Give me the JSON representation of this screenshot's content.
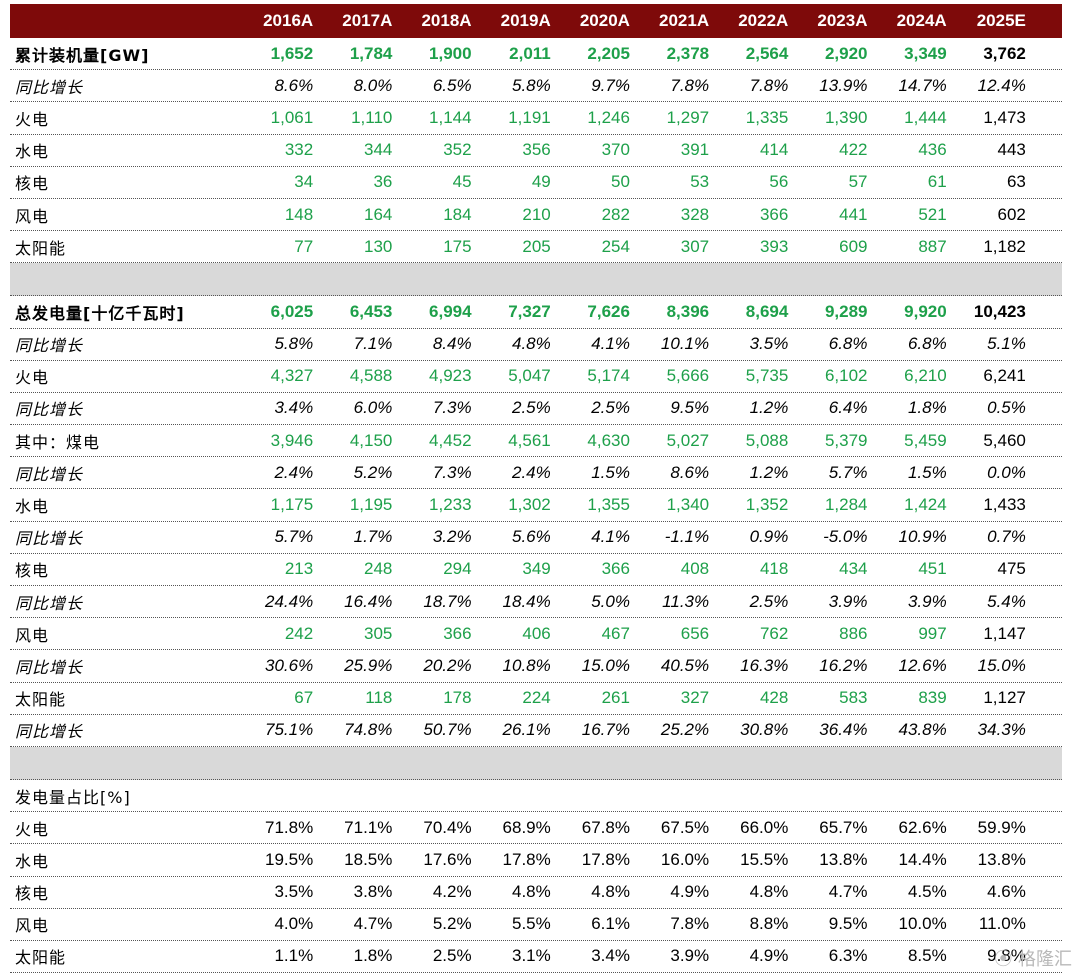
{
  "header": [
    "2016A",
    "2017A",
    "2018A",
    "2019A",
    "2020A",
    "2021A",
    "2022A",
    "2023A",
    "2024A",
    "2025E"
  ],
  "rows": [
    {
      "label": "累计装机量[GW]",
      "values": [
        "1,652",
        "1,784",
        "1,900",
        "2,011",
        "2,205",
        "2,378",
        "2,564",
        "2,920",
        "3,349",
        "3,762"
      ],
      "style": "green bold"
    },
    {
      "label": "同比增长",
      "values": [
        "8.6%",
        "8.0%",
        "6.5%",
        "5.8%",
        "9.7%",
        "7.8%",
        "7.8%",
        "13.9%",
        "14.7%",
        "12.4%"
      ],
      "style": "ital"
    },
    {
      "label": "火电",
      "values": [
        "1,061",
        "1,110",
        "1,144",
        "1,191",
        "1,246",
        "1,297",
        "1,335",
        "1,390",
        "1,444",
        "1,473"
      ],
      "style": "green"
    },
    {
      "label": "水电",
      "values": [
        "332",
        "344",
        "352",
        "356",
        "370",
        "391",
        "414",
        "422",
        "436",
        "443"
      ],
      "style": "green"
    },
    {
      "label": "核电",
      "values": [
        "34",
        "36",
        "45",
        "49",
        "50",
        "53",
        "56",
        "57",
        "61",
        "63"
      ],
      "style": "green"
    },
    {
      "label": "风电",
      "values": [
        "148",
        "164",
        "184",
        "210",
        "282",
        "328",
        "366",
        "441",
        "521",
        "602"
      ],
      "style": "green"
    },
    {
      "label": "太阳能",
      "values": [
        "77",
        "130",
        "175",
        "205",
        "254",
        "307",
        "393",
        "609",
        "887",
        "1,182"
      ],
      "style": "green"
    },
    {
      "label": "",
      "values": [],
      "style": "gap"
    },
    {
      "label": "总发电量[十亿千瓦时]",
      "values": [
        "6,025",
        "6,453",
        "6,994",
        "7,327",
        "7,626",
        "8,396",
        "8,694",
        "9,289",
        "9,920",
        "10,423"
      ],
      "style": "green bold"
    },
    {
      "label": "同比增长",
      "values": [
        "5.8%",
        "7.1%",
        "8.4%",
        "4.8%",
        "4.1%",
        "10.1%",
        "3.5%",
        "6.8%",
        "6.8%",
        "5.1%"
      ],
      "style": "ital"
    },
    {
      "label": "火电",
      "values": [
        "4,327",
        "4,588",
        "4,923",
        "5,047",
        "5,174",
        "5,666",
        "5,735",
        "6,102",
        "6,210",
        "6,241"
      ],
      "style": "green"
    },
    {
      "label": "同比增长",
      "values": [
        "3.4%",
        "6.0%",
        "7.3%",
        "2.5%",
        "2.5%",
        "9.5%",
        "1.2%",
        "6.4%",
        "1.8%",
        "0.5%"
      ],
      "style": "ital"
    },
    {
      "label": "其中：煤电",
      "values": [
        "3,946",
        "4,150",
        "4,452",
        "4,561",
        "4,630",
        "5,027",
        "5,088",
        "5,379",
        "5,459",
        "5,460"
      ],
      "style": "green"
    },
    {
      "label": "同比增长",
      "values": [
        "2.4%",
        "5.2%",
        "7.3%",
        "2.4%",
        "1.5%",
        "8.6%",
        "1.2%",
        "5.7%",
        "1.5%",
        "0.0%"
      ],
      "style": "ital"
    },
    {
      "label": "水电",
      "values": [
        "1,175",
        "1,195",
        "1,233",
        "1,302",
        "1,355",
        "1,340",
        "1,352",
        "1,284",
        "1,424",
        "1,433"
      ],
      "style": "green"
    },
    {
      "label": "同比增长",
      "values": [
        "5.7%",
        "1.7%",
        "3.2%",
        "5.6%",
        "4.1%",
        "-1.1%",
        "0.9%",
        "-5.0%",
        "10.9%",
        "0.7%"
      ],
      "style": "ital"
    },
    {
      "label": "核电",
      "values": [
        "213",
        "248",
        "294",
        "349",
        "366",
        "408",
        "418",
        "434",
        "451",
        "475"
      ],
      "style": "green"
    },
    {
      "label": "同比增长",
      "values": [
        "24.4%",
        "16.4%",
        "18.7%",
        "18.4%",
        "5.0%",
        "11.3%",
        "2.5%",
        "3.9%",
        "3.9%",
        "5.4%"
      ],
      "style": "ital"
    },
    {
      "label": "风电",
      "values": [
        "242",
        "305",
        "366",
        "406",
        "467",
        "656",
        "762",
        "886",
        "997",
        "1,147"
      ],
      "style": "green"
    },
    {
      "label": "同比增长",
      "values": [
        "30.6%",
        "25.9%",
        "20.2%",
        "10.8%",
        "15.0%",
        "40.5%",
        "16.3%",
        "16.2%",
        "12.6%",
        "15.0%"
      ],
      "style": "ital"
    },
    {
      "label": "太阳能",
      "values": [
        "67",
        "118",
        "178",
        "224",
        "261",
        "327",
        "428",
        "583",
        "839",
        "1,127"
      ],
      "style": "green"
    },
    {
      "label": "同比增长",
      "values": [
        "75.1%",
        "74.8%",
        "50.7%",
        "26.1%",
        "16.7%",
        "25.2%",
        "30.8%",
        "36.4%",
        "43.8%",
        "34.3%"
      ],
      "style": "ital"
    },
    {
      "label": "",
      "values": [],
      "style": "gap"
    },
    {
      "label": "发电量占比[%]",
      "values": [],
      "style": "plain"
    },
    {
      "label": "火电",
      "values": [
        "71.8%",
        "71.1%",
        "70.4%",
        "68.9%",
        "67.8%",
        "67.5%",
        "66.0%",
        "65.7%",
        "62.6%",
        "59.9%"
      ],
      "style": "plain"
    },
    {
      "label": "水电",
      "values": [
        "19.5%",
        "18.5%",
        "17.6%",
        "17.8%",
        "17.8%",
        "16.0%",
        "15.5%",
        "13.8%",
        "14.4%",
        "13.8%"
      ],
      "style": "plain"
    },
    {
      "label": "核电",
      "values": [
        "3.5%",
        "3.8%",
        "4.2%",
        "4.8%",
        "4.8%",
        "4.9%",
        "4.8%",
        "4.7%",
        "4.5%",
        "4.6%"
      ],
      "style": "plain"
    },
    {
      "label": "风电",
      "values": [
        "4.0%",
        "4.7%",
        "5.2%",
        "5.5%",
        "6.1%",
        "7.8%",
        "8.8%",
        "9.5%",
        "10.0%",
        "11.0%"
      ],
      "style": "plain"
    },
    {
      "label": "太阳能",
      "values": [
        "1.1%",
        "1.8%",
        "2.5%",
        "3.1%",
        "3.4%",
        "3.9%",
        "4.9%",
        "6.3%",
        "8.5%",
        "9.8%"
      ],
      "style": "plain"
    }
  ],
  "watermark": "格隆汇"
}
